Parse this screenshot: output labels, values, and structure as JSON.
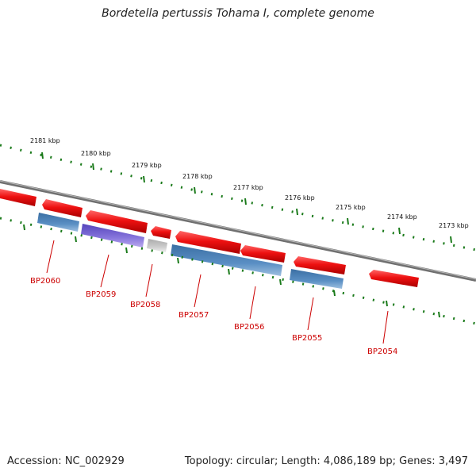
{
  "title": "Bordetella pertussis Tohama I, complete genome",
  "footer": {
    "accession": "Accession: NC_002929",
    "summary": "Topology: circular; Length: 4,086,189 bp; Genes: 3,497"
  },
  "scale": {
    "labels": [
      "2181 kbp",
      "2180 kbp",
      "2179 kbp",
      "2178 kbp",
      "2177 kbp",
      "2176 kbp",
      "2175 kbp",
      "2174 kbp",
      "2173 kbp"
    ]
  },
  "genes": [
    {
      "label": "BP2060"
    },
    {
      "label": "BP2059"
    },
    {
      "label": "BP2058"
    },
    {
      "label": "BP2057"
    },
    {
      "label": "BP2056"
    },
    {
      "label": "BP2055"
    },
    {
      "label": "BP2054"
    }
  ],
  "colors": {
    "forward": "#ee1111",
    "reverse_blue": "#4a7fb5",
    "reverse_purple": "#7a66cc",
    "reverse_gray": "#c8c8c8",
    "backbone": "#808080",
    "ticks": "#1a7a1a",
    "gene_label": "#cc0000"
  }
}
